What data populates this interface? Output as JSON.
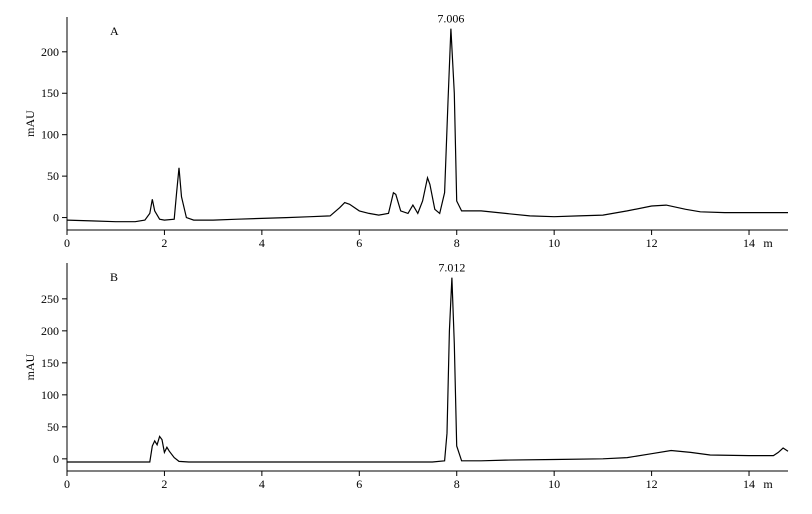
{
  "chart_data": [
    {
      "type": "line",
      "label": "A",
      "y_label": "mAU",
      "x_label": "m",
      "annotation": "7.006",
      "color": "#000000",
      "x": [
        0,
        0.5,
        1.0,
        1.4,
        1.6,
        1.7,
        1.75,
        1.8,
        1.9,
        2.0,
        2.2,
        2.25,
        2.3,
        2.35,
        2.45,
        2.6,
        3.0,
        3.5,
        4.0,
        4.5,
        5.0,
        5.4,
        5.6,
        5.7,
        5.8,
        6.0,
        6.2,
        6.4,
        6.6,
        6.7,
        6.75,
        6.85,
        7.0,
        7.1,
        7.2,
        7.3,
        7.4,
        7.45,
        7.55,
        7.65,
        7.75,
        7.82,
        7.88,
        7.95,
        8.0,
        8.1,
        8.5,
        9.0,
        9.5,
        10.0,
        10.5,
        11.0,
        11.5,
        12.0,
        12.3,
        12.7,
        13.0,
        13.5,
        14.0,
        14.8
      ],
      "values": [
        -3,
        -4,
        -5,
        -5,
        -3,
        5,
        22,
        8,
        -2,
        -3,
        -2,
        30,
        60,
        25,
        0,
        -3,
        -3,
        -2,
        -1,
        0,
        1,
        2,
        12,
        18,
        16,
        8,
        5,
        3,
        5,
        30,
        28,
        8,
        5,
        15,
        5,
        20,
        48,
        40,
        10,
        5,
        30,
        140,
        228,
        150,
        20,
        8,
        8,
        5,
        2,
        1,
        2,
        3,
        8,
        14,
        15,
        10,
        7,
        6,
        6,
        6
      ],
      "xlim": [
        0,
        14.8
      ],
      "xticks": [
        0,
        2,
        4,
        6,
        8,
        10,
        12,
        14
      ],
      "ylim": [
        -15,
        242
      ],
      "yticks": [
        0,
        50,
        100,
        150,
        200
      ]
    },
    {
      "type": "line",
      "label": "B",
      "y_label": "mAU",
      "x_label": "m",
      "annotation": "7.012",
      "color": "#000000",
      "x": [
        0,
        1.0,
        1.7,
        1.75,
        1.8,
        1.85,
        1.9,
        1.95,
        2.0,
        2.05,
        2.1,
        2.2,
        2.3,
        2.5,
        4,
        6,
        7.5,
        7.75,
        7.8,
        7.85,
        7.9,
        7.95,
        8.0,
        8.1,
        8.5,
        9,
        10,
        11,
        11.5,
        12,
        12.4,
        12.8,
        13.2,
        14,
        14.5,
        14.6,
        14.7,
        14.8
      ],
      "values": [
        -5,
        -5,
        -5,
        20,
        28,
        22,
        35,
        30,
        10,
        18,
        12,
        2,
        -4,
        -5,
        -5,
        -5,
        -5,
        -3,
        40,
        200,
        283,
        180,
        20,
        -3,
        -3,
        -2,
        -1,
        0,
        2,
        8,
        13,
        10,
        6,
        5,
        5,
        10,
        17,
        12
      ],
      "xlim": [
        0,
        14.8
      ],
      "xticks": [
        0,
        2,
        4,
        6,
        8,
        10,
        12,
        14
      ],
      "ylim": [
        -19,
        306
      ],
      "yticks": [
        0,
        50,
        100,
        150,
        200,
        250
      ]
    }
  ]
}
